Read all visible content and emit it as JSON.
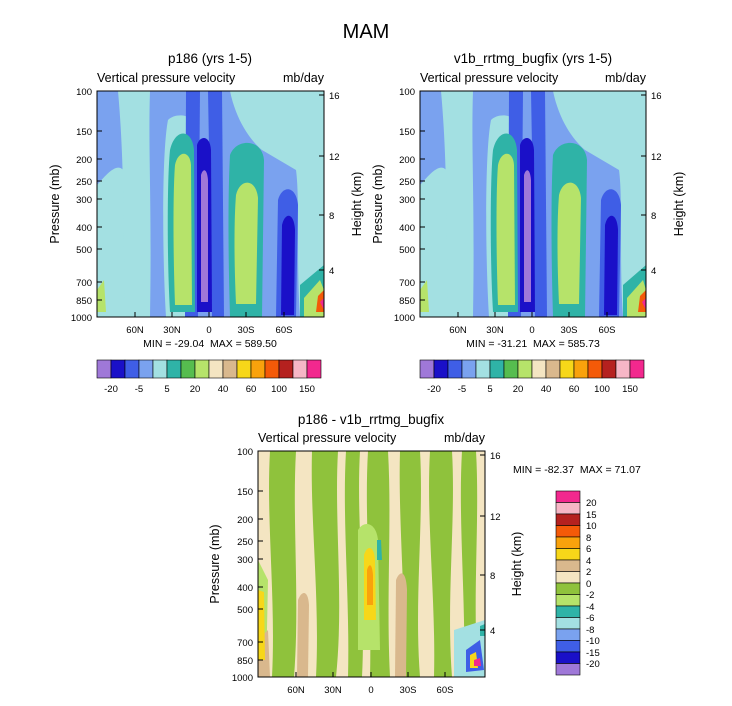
{
  "figure_title": "MAM",
  "chart_data": [
    {
      "type": "contour",
      "id": "p1",
      "title": "p186 (yrs 1-5)",
      "left_string": "Vertical pressure velocity",
      "right_string": "mb/day",
      "ylabel": "Pressure (mb)",
      "y2label": "Height (km)",
      "y_ticks": [
        "100",
        "150",
        "200",
        "250",
        "300",
        "400",
        "500",
        "700",
        "850",
        "1000"
      ],
      "y2_ticks": [
        "16",
        "12",
        "8",
        "4"
      ],
      "x_ticks": [
        "60N",
        "30N",
        "0",
        "30S",
        "60S"
      ],
      "stats": "MIN = -29.04  MAX = 589.50",
      "legend_levels": [
        "-20",
        "-5",
        "5",
        "20",
        "40",
        "60",
        "100",
        "150"
      ]
    },
    {
      "type": "contour",
      "id": "p2",
      "title": "v1b_rrtmg_bugfix (yrs 1-5)",
      "left_string": "Vertical pressure velocity",
      "right_string": "mb/day",
      "ylabel": "Pressure (mb)",
      "y2label": "Height (km)",
      "y_ticks": [
        "100",
        "150",
        "200",
        "250",
        "300",
        "400",
        "500",
        "700",
        "850",
        "1000"
      ],
      "y2_ticks": [
        "16",
        "12",
        "8",
        "4"
      ],
      "x_ticks": [
        "60N",
        "30N",
        "0",
        "30S",
        "60S"
      ],
      "stats": "MIN = -31.21  MAX = 585.73",
      "legend_levels": [
        "-20",
        "-5",
        "5",
        "20",
        "40",
        "60",
        "100",
        "150"
      ]
    },
    {
      "type": "contour",
      "id": "p3",
      "title": "p186 - v1b_rrtmg_bugfix",
      "left_string": "Vertical pressure velocity",
      "right_string": "mb/day",
      "ylabel": "Pressure (mb)",
      "y2label": "Height (km)",
      "y_ticks": [
        "100",
        "150",
        "200",
        "250",
        "300",
        "400",
        "500",
        "700",
        "850",
        "1000"
      ],
      "y2_ticks": [
        "16",
        "12",
        "8",
        "4"
      ],
      "x_ticks": [
        "60N",
        "30N",
        "0",
        "30S",
        "60S"
      ],
      "stats": "MIN = -82.37  MAX = 71.07",
      "legend_levels": [
        "20",
        "15",
        "10",
        "8",
        "6",
        "4",
        "2",
        "0",
        "-2",
        "-4",
        "-6",
        "-8",
        "-10",
        "-15",
        "-20"
      ]
    }
  ],
  "colors": {
    "main_palette": [
      "#9f78d8",
      "#1a10c8",
      "#3f5ee6",
      "#7aa2ef",
      "#a3e0e2",
      "#2fb3a7",
      "#56bd4f",
      "#b6e36a",
      "#f4e5c2",
      "#d9b88d",
      "#f7d719",
      "#f9a20c",
      "#f45a08",
      "#b5211f",
      "#f6b6c6",
      "#f2288e"
    ],
    "diff_palette": [
      "#f2288e",
      "#f6b6c6",
      "#b5211f",
      "#f45a08",
      "#f9a20c",
      "#f7d719",
      "#d9b88d",
      "#f4e5c2",
      "#8fc23c",
      "#b6e36a",
      "#2fb3a7",
      "#a3e0e2",
      "#7aa2ef",
      "#3f5ee6",
      "#1a10c8",
      "#9f78d8"
    ]
  }
}
